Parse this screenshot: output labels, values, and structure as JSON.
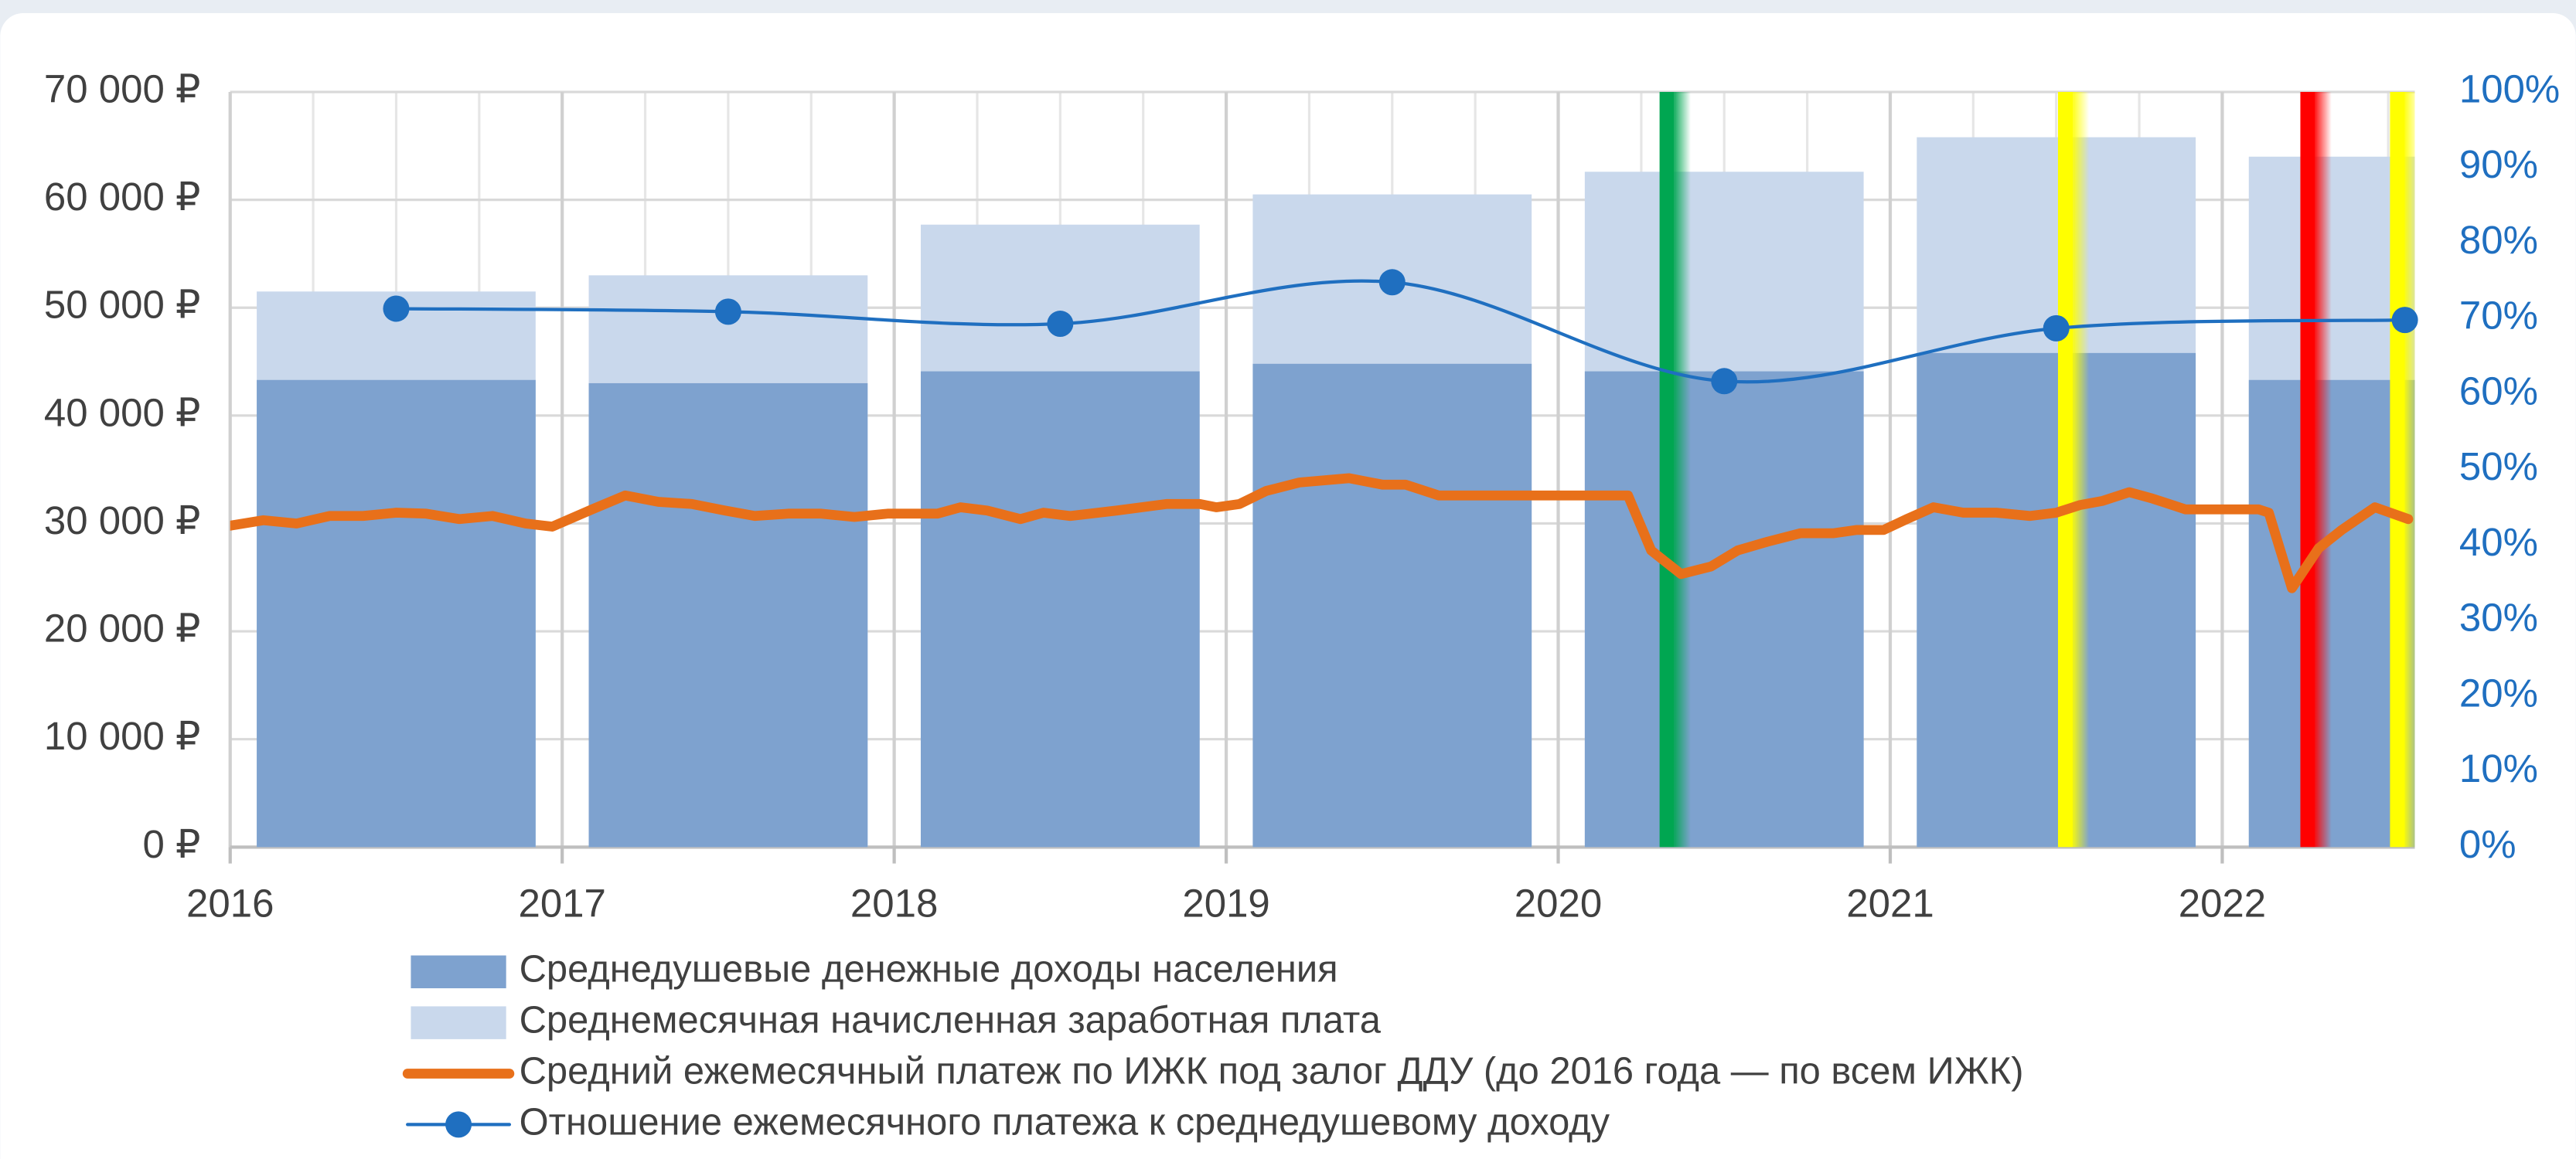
{
  "chart_data": {
    "type": "bar",
    "xlim": [
      2016,
      2022.58
    ],
    "xticks": [
      2016,
      2017,
      2018,
      2019,
      2020,
      2021,
      2022
    ],
    "ylim": [
      0,
      70000
    ],
    "yticks": [
      {
        "value": 0,
        "label": "0 ₽"
      },
      {
        "value": 10000,
        "label": "10 000 ₽"
      },
      {
        "value": 20000,
        "label": "20 000 ₽"
      },
      {
        "value": 30000,
        "label": "30 000 ₽"
      },
      {
        "value": 40000,
        "label": "40 000 ₽"
      },
      {
        "value": 50000,
        "label": "50 000 ₽"
      },
      {
        "value": 60000,
        "label": "60 000 ₽"
      },
      {
        "value": 70000,
        "label": "70 000 ₽"
      }
    ],
    "y2lim": [
      0,
      100
    ],
    "y2ticks": [
      {
        "value": 0,
        "label": "0%"
      },
      {
        "value": 10,
        "label": "10%"
      },
      {
        "value": 20,
        "label": "20%"
      },
      {
        "value": 30,
        "label": "30%"
      },
      {
        "value": 40,
        "label": "40%"
      },
      {
        "value": 50,
        "label": "50%"
      },
      {
        "value": 60,
        "label": "60%"
      },
      {
        "value": 70,
        "label": "70%"
      },
      {
        "value": 80,
        "label": "80%"
      },
      {
        "value": 90,
        "label": "90%"
      },
      {
        "value": 100,
        "label": "100%"
      }
    ],
    "grid": true,
    "legend": "bottom",
    "series": [
      {
        "name": "Среднедушевые денежные доходы населения",
        "type": "bar",
        "color": "#7ea2cf",
        "x": [
          2016.5,
          2017.5,
          2018.5,
          2019.5,
          2020.5,
          2021.5,
          2022.5
        ],
        "values": [
          43300,
          43000,
          44100,
          44800,
          44100,
          45800,
          43300
        ]
      },
      {
        "name": "Среднемесячная начисленная заработная плата",
        "type": "bar",
        "color": "#c9d8ec",
        "x": [
          2016.5,
          2017.5,
          2018.5,
          2019.5,
          2020.5,
          2021.5,
          2022.5
        ],
        "values": [
          51500,
          53000,
          57700,
          60500,
          62600,
          65800,
          64000
        ]
      },
      {
        "name": "Средний ежемесячный платеж по ИЖК под залог ДДУ (до 2016 года — по всем ИЖК)",
        "type": "line",
        "color": "#e8701a",
        "x": [
          2016.0,
          2016.1,
          2016.2,
          2016.3,
          2016.4,
          2016.5,
          2016.59,
          2016.69,
          2016.79,
          2016.89,
          2016.97,
          2017.09,
          2017.19,
          2017.29,
          2017.39,
          2017.49,
          2017.58,
          2017.68,
          2017.78,
          2017.88,
          2017.98,
          2018.13,
          2018.2,
          2018.28,
          2018.38,
          2018.45,
          2018.53,
          2018.67,
          2018.82,
          2018.92,
          2018.97,
          2019.04,
          2019.12,
          2019.22,
          2019.37,
          2019.47,
          2019.54,
          2019.64,
          2019.76,
          2019.96,
          2020.06,
          2020.21,
          2020.28,
          2020.37,
          2020.46,
          2020.54,
          2020.63,
          2020.73,
          2020.83,
          2020.9,
          2020.98,
          2021.05,
          2021.13,
          2021.22,
          2021.32,
          2021.42,
          2021.5,
          2021.57,
          2021.64,
          2021.72,
          2021.79,
          2021.89,
          2021.99,
          2022.11,
          2022.14,
          2022.21,
          2022.29,
          2022.36,
          2022.46,
          2022.56
        ],
        "values": [
          29800,
          30300,
          30000,
          30700,
          30700,
          31000,
          30900,
          30400,
          30700,
          30000,
          29700,
          31300,
          32600,
          32000,
          31800,
          31200,
          30700,
          30900,
          30900,
          30600,
          30900,
          30900,
          31500,
          31200,
          30400,
          31000,
          30700,
          31200,
          31800,
          31800,
          31500,
          31800,
          33000,
          33800,
          34200,
          33600,
          33600,
          32600,
          32600,
          32600,
          32600,
          32600,
          27500,
          25300,
          26000,
          27500,
          28300,
          29100,
          29100,
          29400,
          29400,
          30400,
          31500,
          31000,
          31000,
          30700,
          31000,
          31700,
          32100,
          32900,
          32300,
          31300,
          31300,
          31300,
          31000,
          24000,
          27700,
          29400,
          31500,
          30400
        ]
      },
      {
        "name": "Отношение ежемесячного платежа к среднедушевому доходу",
        "type": "smooth",
        "axis": "y2",
        "color": "#1f6fc0",
        "x": [
          2016.5,
          2017.5,
          2018.5,
          2019.5,
          2020.5,
          2021.5,
          2022.55
        ],
        "values": [
          71.3,
          70.9,
          69.3,
          74.8,
          61.7,
          68.7,
          69.8
        ]
      }
    ],
    "vertical_markers": [
      {
        "x": 2020.33,
        "color": "#00a651"
      },
      {
        "x": 2021.53,
        "color": "#ffff00"
      },
      {
        "x": 2022.26,
        "color": "#ff0000"
      },
      {
        "x": 2022.53,
        "color": "#ffff00"
      }
    ]
  }
}
